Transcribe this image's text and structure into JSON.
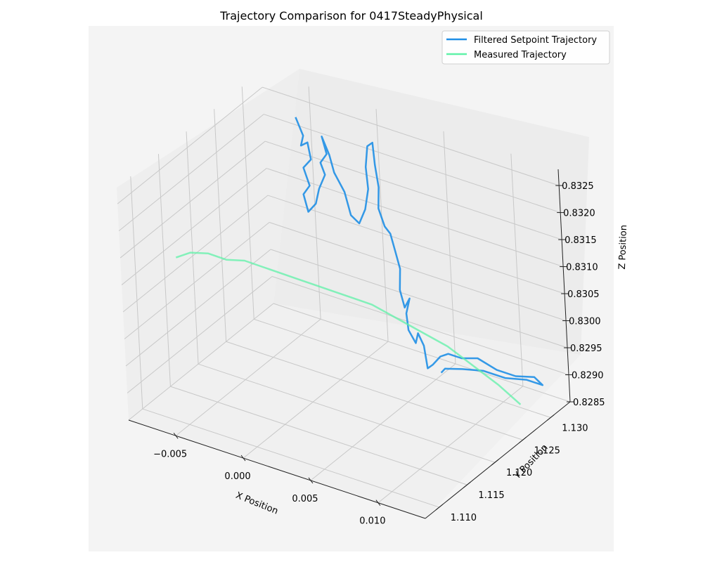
{
  "chart_data": {
    "type": "line3d",
    "title": "Trajectory Comparison for 0417SteadyPhysical",
    "xlabel": "X Position",
    "ylabel": "Y Position",
    "zlabel": "Z Position",
    "x_ticks": [
      "−0.005",
      "0.000",
      "0.005",
      "0.010"
    ],
    "y_ticks": [
      "1.110",
      "1.115",
      "1.120",
      "1.125",
      "1.130"
    ],
    "z_ticks": [
      "0.8285",
      "0.8290",
      "0.8295",
      "0.8300",
      "0.8305",
      "0.8310",
      "0.8315",
      "0.8320",
      "0.8325"
    ],
    "xlim": [
      -0.0085,
      0.0135
    ],
    "ylim": [
      1.1075,
      1.1335
    ],
    "zlim": [
      0.8285,
      0.8328
    ],
    "grid": true,
    "legend_position": "top-right",
    "series": [
      {
        "name": "Filtered Setpoint Trajectory",
        "color": "#1f8fe6",
        "points": [
          [
            -0.0048,
            1.1305,
            0.8325
          ],
          [
            -0.0043,
            1.1305,
            0.8322
          ],
          [
            -0.0045,
            1.1305,
            0.832
          ],
          [
            -0.004,
            1.1305,
            0.8321
          ],
          [
            -0.0038,
            1.1305,
            0.8318
          ],
          [
            -0.0044,
            1.1305,
            0.8316
          ],
          [
            -0.004,
            1.1305,
            0.8313
          ],
          [
            -0.0045,
            1.1305,
            0.8311
          ],
          [
            -0.0042,
            1.1305,
            0.8308
          ],
          [
            -0.0036,
            1.1305,
            0.831
          ],
          [
            -0.0033,
            1.1305,
            0.8313
          ],
          [
            -0.0028,
            1.1305,
            0.8316
          ],
          [
            -0.0031,
            1.1305,
            0.8318
          ],
          [
            -0.0026,
            1.1305,
            0.832
          ],
          [
            -0.0029,
            1.1305,
            0.8323
          ],
          [
            -0.0024,
            1.1305,
            0.832
          ],
          [
            -0.0021,
            1.1305,
            0.8317
          ],
          [
            -0.0014,
            1.1305,
            0.8314
          ],
          [
            -0.001,
            1.1305,
            0.831
          ],
          [
            -0.0004,
            1.1305,
            0.8309
          ],
          [
            0.0001,
            1.1305,
            0.8312
          ],
          [
            0.0004,
            1.1305,
            0.8316
          ],
          [
            0.0003,
            1.1305,
            0.832
          ],
          [
            0.0005,
            1.1305,
            0.8324
          ],
          [
            0.0009,
            1.1305,
            0.8325
          ],
          [
            0.001,
            1.1305,
            0.8321
          ],
          [
            0.0012,
            1.1305,
            0.8317
          ],
          [
            0.0011,
            1.1305,
            0.8313
          ],
          [
            0.0015,
            1.1305,
            0.831
          ],
          [
            0.0019,
            1.1305,
            0.8309
          ],
          [
            0.0022,
            1.1305,
            0.8306
          ],
          [
            0.0025,
            1.1305,
            0.8303
          ],
          [
            0.0024,
            1.1305,
            0.8299
          ],
          [
            0.0027,
            1.1305,
            0.8296
          ],
          [
            0.0031,
            1.1305,
            0.8298
          ],
          [
            0.0028,
            1.1305,
            0.8295
          ],
          [
            0.0029,
            1.1305,
            0.8292
          ],
          [
            0.0034,
            1.1305,
            0.829
          ],
          [
            0.0036,
            1.1305,
            0.8292
          ],
          [
            0.004,
            1.1305,
            0.829
          ],
          [
            0.0042,
            1.1305,
            0.8286
          ],
          [
            0.0046,
            1.1305,
            0.8287
          ],
          [
            0.0052,
            1.1305,
            0.8289
          ],
          [
            0.0058,
            1.1305,
            0.829
          ],
          [
            0.0068,
            1.1305,
            0.829
          ],
          [
            0.008,
            1.1305,
            0.8291
          ],
          [
            0.0094,
            1.1305,
            0.829
          ],
          [
            0.0108,
            1.1305,
            0.829
          ],
          [
            0.0122,
            1.1305,
            0.8291
          ],
          [
            0.0128,
            1.1305,
            0.829
          ],
          [
            0.0116,
            1.1305,
            0.829
          ],
          [
            0.01,
            1.1305,
            0.8289
          ],
          [
            0.0084,
            1.1305,
            0.8289
          ],
          [
            0.0068,
            1.1305,
            0.8288
          ],
          [
            0.0055,
            1.1305,
            0.8287
          ],
          [
            0.0052,
            1.1305,
            0.8286
          ]
        ]
      },
      {
        "name": "Measured Trajectory",
        "color": "#5ff2a8",
        "points": [
          [
            -0.0078,
            1.1155,
            0.8309
          ],
          [
            -0.007,
            1.1162,
            0.831
          ],
          [
            -0.006,
            1.117,
            0.831
          ],
          [
            -0.005,
            1.1178,
            0.8309
          ],
          [
            -0.004,
            1.1186,
            0.8309
          ],
          [
            -0.003,
            1.1194,
            0.8308
          ],
          [
            -0.002,
            1.1202,
            0.8307
          ],
          [
            -0.001,
            1.121,
            0.8306
          ],
          [
            0.0,
            1.1218,
            0.8305
          ],
          [
            0.001,
            1.1226,
            0.8304
          ],
          [
            0.002,
            1.1234,
            0.8303
          ],
          [
            0.003,
            1.1242,
            0.8302
          ],
          [
            0.0045,
            1.125,
            0.83
          ],
          [
            0.006,
            1.1258,
            0.8298
          ],
          [
            0.0075,
            1.1266,
            0.8296
          ],
          [
            0.009,
            1.1274,
            0.8293
          ],
          [
            0.0105,
            1.1282,
            0.829
          ],
          [
            0.0118,
            1.1288,
            0.8287
          ]
        ]
      }
    ]
  }
}
